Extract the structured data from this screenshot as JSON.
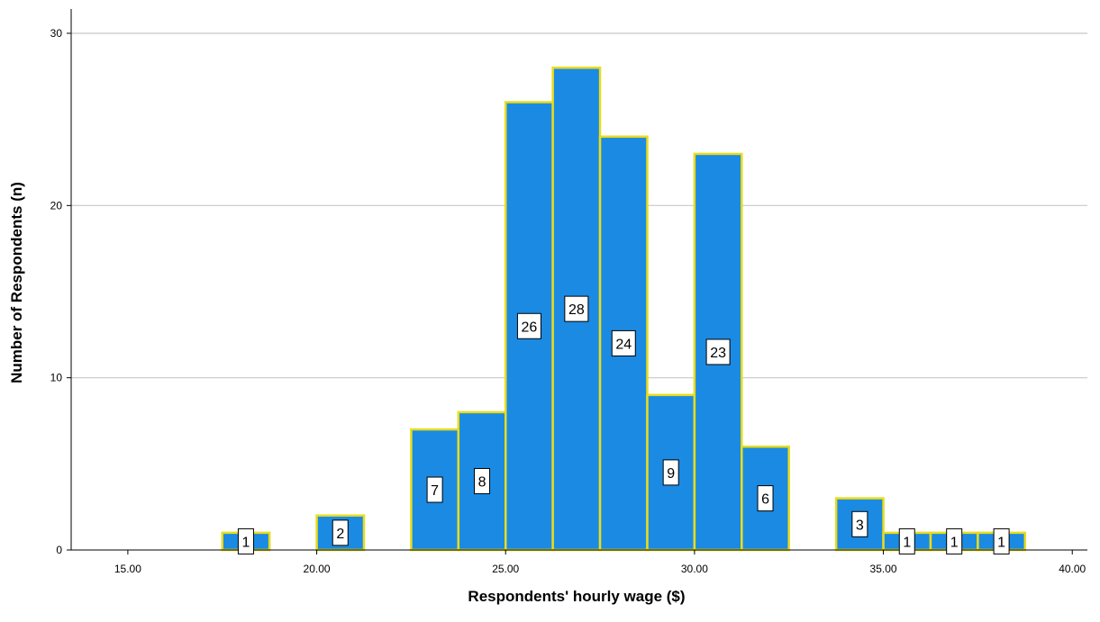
{
  "chart_data": {
    "type": "bar",
    "subtype": "histogram",
    "title": "",
    "xlabel": "Respondents' hourly wage ($)",
    "ylabel": "Number of Respondents (n)",
    "xlim": [
      13.5,
      40.4
    ],
    "ylim": [
      0,
      30
    ],
    "xticks": [
      "15.00",
      "20.00",
      "25.00",
      "30.00",
      "35.00",
      "40.00"
    ],
    "yticks": [
      "0",
      "10",
      "20",
      "30"
    ],
    "grid": "horizontal",
    "bin_width": 1.25,
    "bins": [
      {
        "start": 17.5,
        "end": 18.75,
        "count": 1,
        "label": "1"
      },
      {
        "start": 20.0,
        "end": 21.25,
        "count": 2,
        "label": "2"
      },
      {
        "start": 22.5,
        "end": 23.75,
        "count": 7,
        "label": "7"
      },
      {
        "start": 23.75,
        "end": 25.0,
        "count": 8,
        "label": "8"
      },
      {
        "start": 25.0,
        "end": 26.25,
        "count": 26,
        "label": "26"
      },
      {
        "start": 26.25,
        "end": 27.5,
        "count": 28,
        "label": "28"
      },
      {
        "start": 27.5,
        "end": 28.75,
        "count": 24,
        "label": "24"
      },
      {
        "start": 28.75,
        "end": 30.0,
        "count": 9,
        "label": "9"
      },
      {
        "start": 30.0,
        "end": 31.25,
        "count": 23,
        "label": "23"
      },
      {
        "start": 31.25,
        "end": 32.5,
        "count": 6,
        "label": "6"
      },
      {
        "start": 33.75,
        "end": 35.0,
        "count": 3,
        "label": "3"
      },
      {
        "start": 35.0,
        "end": 36.25,
        "count": 1,
        "label": "1"
      },
      {
        "start": 36.25,
        "end": 37.5,
        "count": 1,
        "label": "1"
      },
      {
        "start": 37.5,
        "end": 38.75,
        "count": 1,
        "label": "1"
      }
    ],
    "colors": {
      "bar_fill": "#1b8ae3",
      "bar_edge": "#e8dc1c",
      "gridline": "#c8c8c8",
      "axis": "#000000"
    }
  }
}
